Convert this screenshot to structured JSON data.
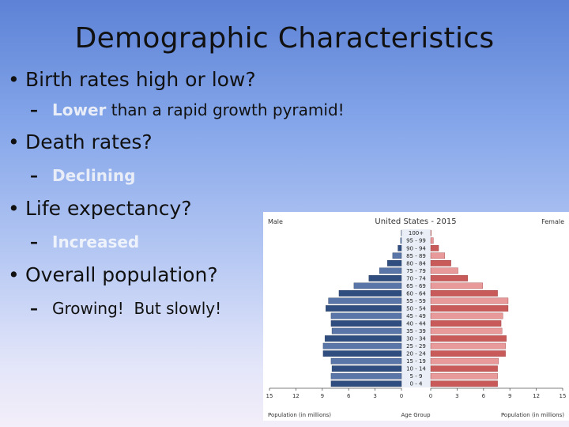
{
  "slide": {
    "title": "Demographic Characteristics",
    "bullets": [
      {
        "text": "Birth rates high or low?",
        "sub_accent": "Lower",
        "sub_rest": " than a rapid growth pyramid!"
      },
      {
        "text": "Death rates?",
        "sub_accent": "Declining",
        "sub_rest": ""
      },
      {
        "text": "Life expectancy?",
        "sub_accent": "Increased",
        "sub_rest": ""
      },
      {
        "text": "Overall population?",
        "sub_accent": "",
        "sub_rest": "Growing!  But slowly!"
      }
    ],
    "bullet_symbol": "•",
    "dash_symbol": "–"
  },
  "chart_data": {
    "type": "bar",
    "title": "United States - 2015",
    "left_label": "Male",
    "right_label": "Female",
    "xlabel_left": "Population (in millions)",
    "xlabel_center": "Age Group",
    "xlabel_right": "Population (in millions)",
    "xticks": [
      "15",
      "12",
      "9",
      "6",
      "3",
      "0",
      "0",
      "3",
      "6",
      "9",
      "12",
      "15"
    ],
    "xlim": [
      0,
      15
    ],
    "categories": [
      "100+",
      "95 - 99",
      "90 - 94",
      "85 - 89",
      "80 - 84",
      "75 - 79",
      "70 - 74",
      "65 - 69",
      "60 - 64",
      "55 - 59",
      "50 - 54",
      "45 - 49",
      "40 - 44",
      "35 - 39",
      "30 - 34",
      "25 - 29",
      "20 - 24",
      "15 - 19",
      "10 - 14",
      "5 - 9",
      "0 - 4"
    ],
    "series": [
      {
        "name": "Male",
        "values": [
          0.02,
          0.1,
          0.4,
          1.0,
          1.6,
          2.5,
          3.7,
          5.4,
          7.1,
          8.3,
          8.6,
          8.0,
          8.0,
          7.9,
          8.7,
          8.9,
          8.9,
          8.0,
          7.9,
          8.0,
          8.0
        ]
      },
      {
        "name": "Female",
        "values": [
          0.05,
          0.3,
          0.9,
          1.6,
          2.3,
          3.1,
          4.2,
          5.9,
          7.6,
          8.8,
          8.8,
          8.2,
          8.0,
          8.1,
          8.6,
          8.5,
          8.5,
          7.7,
          7.6,
          7.6,
          7.6
        ]
      }
    ],
    "colors": {
      "male": "#5a76a8",
      "male_dark": "#2f4d7e",
      "female": "#e89a9a",
      "female_dark": "#c95a5a",
      "center": "#e9eef7"
    }
  }
}
